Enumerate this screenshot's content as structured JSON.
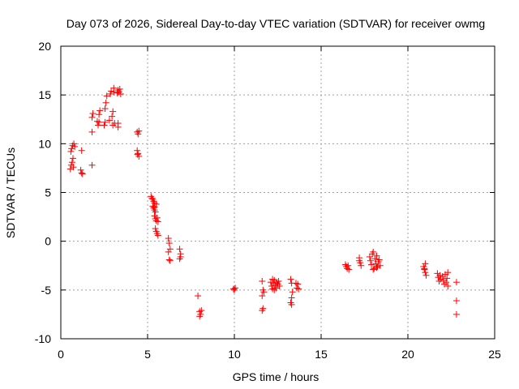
{
  "chart_data": {
    "type": "scatter",
    "title": "Day 073 of 2026, Sidereal Day-to-day VTEC variation (SDTVAR) for receiver owmg",
    "xlabel": "GPS time / hours",
    "ylabel": "SDTVAR / TECUs",
    "xlim": [
      0,
      25
    ],
    "ylim": [
      -10,
      20
    ],
    "xticks": [
      0,
      5,
      10,
      15,
      20,
      25
    ],
    "yticks": [
      -10,
      -5,
      0,
      5,
      10,
      15,
      20
    ],
    "xtick_labels": [
      "0",
      "5",
      "10",
      "15",
      "20",
      "25"
    ],
    "ytick_labels": [
      "-10",
      "-5",
      "0",
      "5",
      "10",
      "15",
      "20"
    ],
    "grid": true,
    "marker": "+",
    "series": [
      {
        "name": "SDTVAR",
        "color": "#ff0000",
        "points": [
          [
            0.55,
            7.4
          ],
          [
            0.6,
            7.8
          ],
          [
            0.65,
            8.1
          ],
          [
            0.7,
            8.5
          ],
          [
            0.72,
            7.6
          ],
          [
            0.58,
            9.2
          ],
          [
            0.62,
            9.5
          ],
          [
            0.68,
            9.8
          ],
          [
            0.75,
            10.0
          ],
          [
            0.8,
            9.7
          ],
          [
            1.15,
            7.3
          ],
          [
            1.2,
            7.0
          ],
          [
            1.25,
            6.9
          ],
          [
            1.2,
            9.3
          ],
          [
            1.8,
            7.8
          ],
          [
            1.8,
            11.2
          ],
          [
            1.8,
            12.7
          ],
          [
            1.85,
            13.1
          ],
          [
            2.1,
            12.3
          ],
          [
            2.15,
            11.9
          ],
          [
            2.2,
            13.0
          ],
          [
            2.25,
            13.4
          ],
          [
            2.2,
            12.2
          ],
          [
            2.5,
            11.9
          ],
          [
            2.55,
            13.6
          ],
          [
            2.6,
            14.2
          ],
          [
            2.65,
            14.9
          ],
          [
            2.55,
            12.2
          ],
          [
            2.8,
            12.4
          ],
          [
            2.85,
            15.1
          ],
          [
            2.9,
            15.4
          ],
          [
            2.95,
            12.8
          ],
          [
            3.0,
            13.3
          ],
          [
            3.05,
            15.3
          ],
          [
            3.0,
            11.9
          ],
          [
            3.05,
            15.7
          ],
          [
            3.1,
            12.1
          ],
          [
            3.25,
            15.2
          ],
          [
            3.3,
            15.5
          ],
          [
            3.35,
            15.3
          ],
          [
            3.4,
            15.6
          ],
          [
            3.45,
            15.1
          ],
          [
            3.3,
            12.1
          ],
          [
            3.3,
            11.7
          ],
          [
            4.4,
            11.2
          ],
          [
            4.45,
            11.0
          ],
          [
            4.5,
            11.3
          ],
          [
            4.4,
            9.3
          ],
          [
            4.45,
            9.0
          ],
          [
            4.5,
            8.7
          ],
          [
            4.42,
            8.9
          ],
          [
            5.2,
            4.6
          ],
          [
            5.25,
            4.4
          ],
          [
            5.3,
            4.3
          ],
          [
            5.35,
            4.1
          ],
          [
            5.4,
            3.9
          ],
          [
            5.3,
            3.6
          ],
          [
            5.35,
            3.4
          ],
          [
            5.4,
            3.2
          ],
          [
            5.45,
            3.0
          ],
          [
            5.5,
            3.8
          ],
          [
            5.4,
            2.6
          ],
          [
            5.45,
            2.3
          ],
          [
            5.5,
            2.1
          ],
          [
            5.55,
            2.4
          ],
          [
            5.6,
            2.0
          ],
          [
            5.45,
            1.3
          ],
          [
            5.5,
            1.0
          ],
          [
            5.55,
            0.8
          ],
          [
            5.6,
            0.6
          ],
          [
            5.4,
            3.5
          ],
          [
            6.2,
            0.3
          ],
          [
            6.25,
            -0.2
          ],
          [
            6.3,
            -0.8
          ],
          [
            6.2,
            -1.1
          ],
          [
            6.25,
            -1.9
          ],
          [
            6.3,
            -2.0
          ],
          [
            6.85,
            -0.8
          ],
          [
            6.9,
            -1.3
          ],
          [
            6.85,
            -1.8
          ],
          [
            6.9,
            -1.6
          ],
          [
            7.9,
            -5.6
          ],
          [
            8.0,
            -7.2
          ],
          [
            8.05,
            -7.5
          ],
          [
            8.1,
            -7.1
          ],
          [
            8.0,
            -7.7
          ],
          [
            9.95,
            -4.9
          ],
          [
            10.0,
            -5.0
          ],
          [
            10.05,
            -4.8
          ],
          [
            11.6,
            -4.1
          ],
          [
            11.65,
            -5.0
          ],
          [
            11.6,
            -5.6
          ],
          [
            11.7,
            -5.2
          ],
          [
            11.65,
            -6.9
          ],
          [
            11.6,
            -7.1
          ],
          [
            12.1,
            -4.2
          ],
          [
            12.15,
            -4.6
          ],
          [
            12.2,
            -4.9
          ],
          [
            12.25,
            -4.3
          ],
          [
            12.3,
            -4.0
          ],
          [
            12.35,
            -4.5
          ],
          [
            12.4,
            -4.8
          ],
          [
            12.45,
            -4.2
          ],
          [
            12.5,
            -4.4
          ],
          [
            12.55,
            -4.1
          ],
          [
            12.6,
            -4.6
          ],
          [
            12.3,
            -5.0
          ],
          [
            12.2,
            -3.9
          ],
          [
            13.25,
            -3.9
          ],
          [
            13.3,
            -4.3
          ],
          [
            13.35,
            -5.2
          ],
          [
            13.3,
            -5.8
          ],
          [
            13.25,
            -6.3
          ],
          [
            13.3,
            -6.5
          ],
          [
            13.55,
            -4.3
          ],
          [
            13.6,
            -4.8
          ],
          [
            13.65,
            -4.4
          ],
          [
            13.7,
            -4.9
          ],
          [
            16.4,
            -2.4
          ],
          [
            16.45,
            -2.6
          ],
          [
            16.5,
            -2.8
          ],
          [
            16.55,
            -2.5
          ],
          [
            16.6,
            -2.9
          ],
          [
            17.2,
            -1.7
          ],
          [
            17.25,
            -2.2
          ],
          [
            17.3,
            -2.5
          ],
          [
            17.2,
            -2.0
          ],
          [
            17.8,
            -1.6
          ],
          [
            17.85,
            -2.0
          ],
          [
            17.9,
            -2.4
          ],
          [
            17.95,
            -1.3
          ],
          [
            18.0,
            -1.1
          ],
          [
            18.05,
            -2.8
          ],
          [
            18.1,
            -1.8
          ],
          [
            18.15,
            -2.3
          ],
          [
            18.2,
            -1.5
          ],
          [
            18.25,
            -2.6
          ],
          [
            18.3,
            -2.1
          ],
          [
            18.35,
            -1.9
          ],
          [
            18.4,
            -2.5
          ],
          [
            18.0,
            -2.9
          ],
          [
            18.2,
            -2.7
          ],
          [
            20.9,
            -2.6
          ],
          [
            20.95,
            -2.9
          ],
          [
            21.0,
            -3.2
          ],
          [
            21.05,
            -3.5
          ],
          [
            20.95,
            -2.8
          ],
          [
            21.0,
            -2.3
          ],
          [
            21.7,
            -3.3
          ],
          [
            21.75,
            -3.7
          ],
          [
            21.8,
            -4.1
          ],
          [
            21.85,
            -3.5
          ],
          [
            21.9,
            -3.9
          ],
          [
            22.0,
            -3.6
          ],
          [
            22.05,
            -4.0
          ],
          [
            22.1,
            -4.4
          ],
          [
            22.15,
            -3.4
          ],
          [
            22.2,
            -4.2
          ],
          [
            22.25,
            -3.8
          ],
          [
            22.3,
            -3.2
          ],
          [
            22.3,
            -4.6
          ],
          [
            22.8,
            -4.2
          ],
          [
            22.8,
            -6.1
          ],
          [
            22.8,
            -7.5
          ]
        ]
      }
    ]
  }
}
